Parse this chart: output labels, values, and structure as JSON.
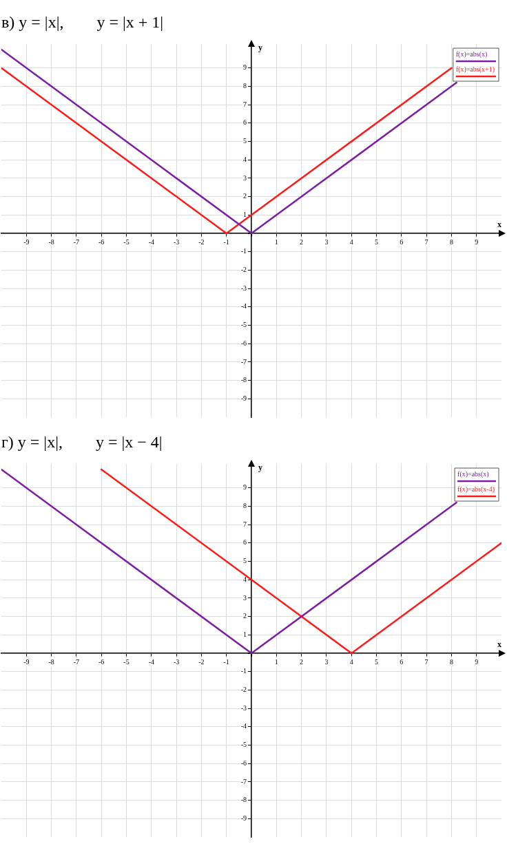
{
  "chart_data": [
    {
      "type": "line",
      "title": "в) y = |x|,        y = |x + 1|",
      "xlabel": "x",
      "ylabel": "y",
      "xlim": [
        -10,
        10
      ],
      "ylim": [
        -10,
        10.3
      ],
      "xticks": [
        -9,
        -8,
        -7,
        -6,
        -5,
        -4,
        -3,
        -2,
        -1,
        {
          "value": 0,
          "label": null
        },
        1,
        2,
        3,
        4,
        5,
        6,
        7,
        8,
        9
      ],
      "yticks": [
        -9,
        -8,
        -7,
        -6,
        -5,
        -4,
        -3,
        -2,
        -1,
        {
          "value": 0,
          "label": null
        },
        1,
        2,
        3,
        4,
        5,
        6,
        7,
        8,
        9
      ],
      "grid": true,
      "legend": "top right",
      "marker": "none",
      "line_style": "solid",
      "series": [
        {
          "name": "f(x)=abs(x)",
          "color": "#7b1fa2",
          "x": [
            -10,
            0,
            8.2
          ],
          "values": [
            10,
            0,
            8.2
          ]
        },
        {
          "name": "f(x)=abs(x+1)",
          "color": "#ff1a1a",
          "x": [
            -10,
            -1,
            8
          ],
          "values": [
            9,
            0,
            9
          ]
        }
      ]
    },
    {
      "type": "line",
      "title": "г) y = |x|,        y = |x − 4|",
      "xlabel": "x",
      "ylabel": "y",
      "xlim": [
        -10,
        10
      ],
      "ylim": [
        -10,
        10.3
      ],
      "xticks": [
        -9,
        -8,
        -7,
        -6,
        -5,
        -4,
        -3,
        -2,
        -1,
        {
          "value": 0,
          "label": null
        },
        1,
        2,
        3,
        4,
        5,
        6,
        7,
        8,
        9
      ],
      "yticks": [
        -9,
        -8,
        -7,
        -6,
        -5,
        -4,
        -3,
        -2,
        -1,
        {
          "value": 0,
          "label": null
        },
        1,
        2,
        3,
        4,
        5,
        6,
        7,
        8,
        9
      ],
      "grid": true,
      "legend": "top right",
      "marker": "none",
      "line_style": "solid",
      "series": [
        {
          "name": "f(x)=abs(x)",
          "color": "#7b1fa2",
          "x": [
            -10,
            0,
            8.2
          ],
          "values": [
            10,
            0,
            8.2
          ]
        },
        {
          "name": "f(x)=abs(x-4)",
          "color": "#ff1a1a",
          "x": [
            -6,
            4,
            10
          ],
          "values": [
            10,
            0,
            6
          ]
        }
      ]
    }
  ]
}
